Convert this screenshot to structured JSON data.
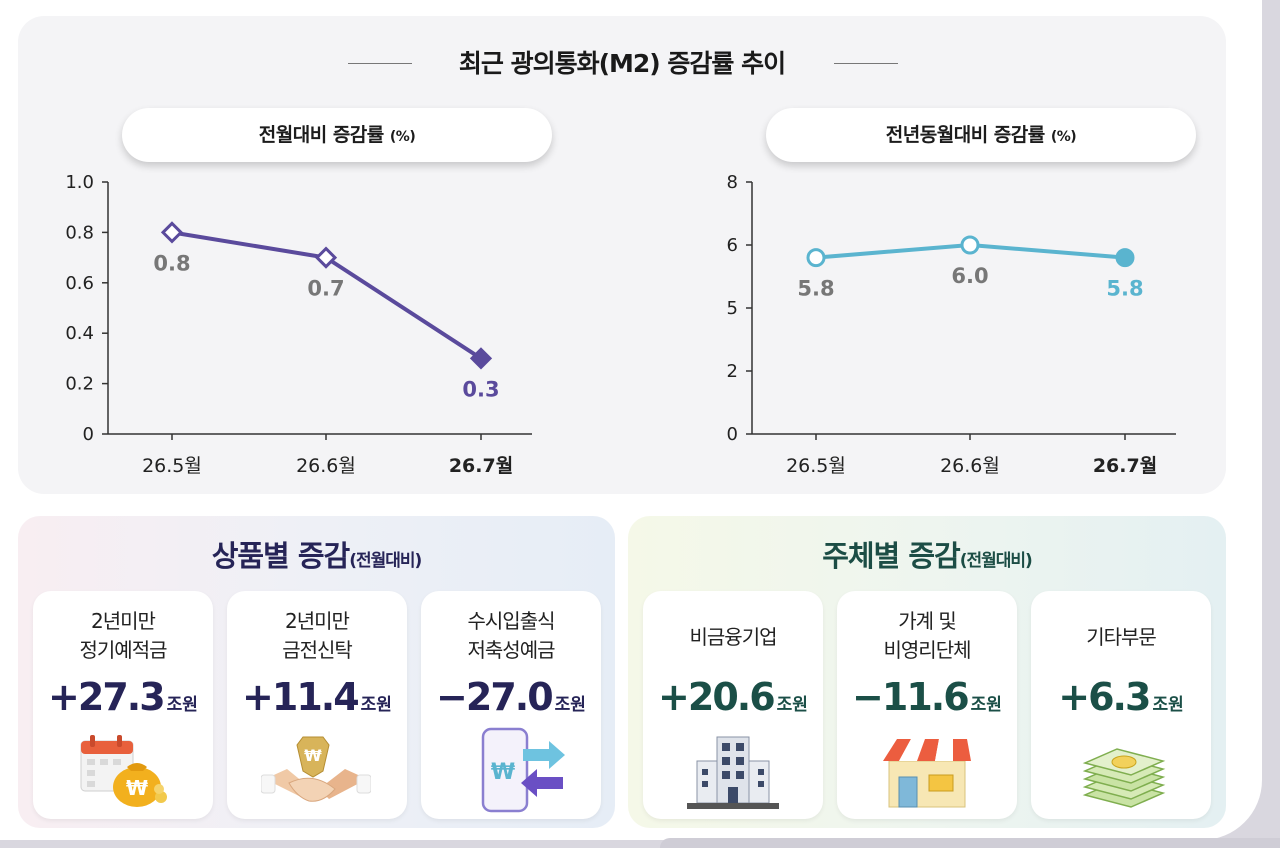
{
  "title": "최근 광의통화(M2) 증감률 추이",
  "colors": {
    "purple": "#5a4a9c",
    "cyan": "#5ab4cf",
    "navy_text": "#262457",
    "teal_text": "#1b4f47"
  },
  "chart_data": [
    {
      "type": "line",
      "title": "전월대비 증감률",
      "title_unit": "(%)",
      "categories": [
        "26.5월",
        "26.6월",
        "26.7월"
      ],
      "values": [
        0.8,
        0.7,
        0.3
      ],
      "value_labels": [
        "0.8",
        "0.7",
        "0.3"
      ],
      "ylim": [
        0,
        1.0
      ],
      "yticks": [
        0,
        0.2,
        0.4,
        0.6,
        0.8,
        1.0
      ],
      "ytick_labels": [
        "0",
        "0.2",
        "0.4",
        "0.6",
        "0.8",
        "1.0"
      ],
      "marker": "diamond",
      "color": "#5a4a9c",
      "grid": false
    },
    {
      "type": "line",
      "title": "전년동월대비 증감률",
      "title_unit": "(%)",
      "categories": [
        "26.5월",
        "26.6월",
        "26.7월"
      ],
      "values": [
        5.8,
        6.0,
        5.8
      ],
      "value_labels": [
        "5.8",
        "6.0",
        "5.8"
      ],
      "yticks": [
        0,
        2,
        5,
        6,
        8
      ],
      "ytick_labels": [
        "0",
        "2",
        "5",
        "6",
        "8"
      ],
      "axis_break": true,
      "marker": "circle",
      "color": "#5ab4cf",
      "grid": false
    }
  ],
  "product": {
    "title": "상품별 증감",
    "subtitle": "(전월대비)",
    "items": [
      {
        "label": "2년미만\n정기예적금",
        "value": "+27.3",
        "unit": "조원",
        "icon": "calendar-money-bag-icon"
      },
      {
        "label": "2년미만\n금전신탁",
        "value": "+11.4",
        "unit": "조원",
        "icon": "handshake-won-icon"
      },
      {
        "label": "수시입출식\n저축성예금",
        "value": "−27.0",
        "unit": "조원",
        "icon": "phone-transfer-icon"
      }
    ]
  },
  "sector": {
    "title": "주체별 증감",
    "subtitle": "(전월대비)",
    "items": [
      {
        "label": "비금융기업",
        "value": "+20.6",
        "unit": "조원",
        "icon": "office-building-icon"
      },
      {
        "label": "가계 및\n비영리단체",
        "value": "−11.6",
        "unit": "조원",
        "icon": "store-icon"
      },
      {
        "label": "기타부문",
        "value": "+6.3",
        "unit": "조원",
        "icon": "money-stack-icon"
      }
    ]
  }
}
